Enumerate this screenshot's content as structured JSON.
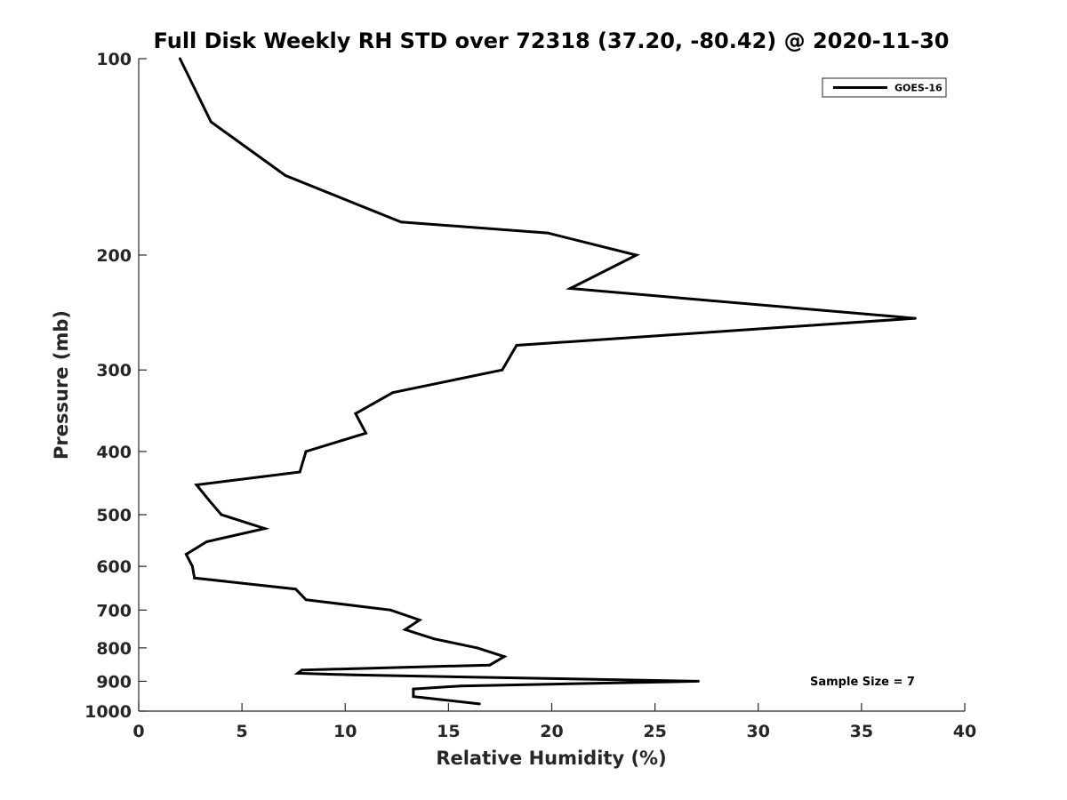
{
  "chart_data": {
    "type": "line",
    "title": "Full Disk Weekly RH STD over 72318 (37.20, -80.42) @ 2020-11-30",
    "xlabel": "Relative Humidity (%)",
    "ylabel": "Pressure (mb)",
    "xlim": [
      0,
      40
    ],
    "ylim": [
      100,
      1000
    ],
    "y_scale": "log",
    "y_inverted": true,
    "x_ticks": [
      "0",
      "5",
      "10",
      "15",
      "20",
      "25",
      "30",
      "35",
      "40"
    ],
    "y_ticks": [
      "100",
      "200",
      "300",
      "400",
      "500",
      "600",
      "700",
      "800",
      "900",
      "1000"
    ],
    "grid": false,
    "legend_position": "top-right",
    "series": [
      {
        "name": "GOES-16",
        "color": "#000000",
        "points": [
          {
            "x": 2.0,
            "y": 100
          },
          {
            "x": 3.5,
            "y": 125
          },
          {
            "x": 7.1,
            "y": 151
          },
          {
            "x": 12.7,
            "y": 178
          },
          {
            "x": 19.8,
            "y": 185
          },
          {
            "x": 24.1,
            "y": 200
          },
          {
            "x": 20.9,
            "y": 225
          },
          {
            "x": 37.6,
            "y": 250
          },
          {
            "x": 18.3,
            "y": 275
          },
          {
            "x": 17.6,
            "y": 300
          },
          {
            "x": 12.3,
            "y": 325
          },
          {
            "x": 10.5,
            "y": 350
          },
          {
            "x": 11.0,
            "y": 375
          },
          {
            "x": 8.1,
            "y": 400
          },
          {
            "x": 7.8,
            "y": 430
          },
          {
            "x": 2.8,
            "y": 450
          },
          {
            "x": 3.4,
            "y": 475
          },
          {
            "x": 4.0,
            "y": 500
          },
          {
            "x": 6.1,
            "y": 525
          },
          {
            "x": 3.3,
            "y": 550
          },
          {
            "x": 2.3,
            "y": 575
          },
          {
            "x": 2.6,
            "y": 600
          },
          {
            "x": 2.7,
            "y": 625
          },
          {
            "x": 7.6,
            "y": 650
          },
          {
            "x": 8.1,
            "y": 675
          },
          {
            "x": 12.2,
            "y": 700
          },
          {
            "x": 13.6,
            "y": 725
          },
          {
            "x": 12.9,
            "y": 750
          },
          {
            "x": 14.3,
            "y": 775
          },
          {
            "x": 16.4,
            "y": 800
          },
          {
            "x": 17.7,
            "y": 825
          },
          {
            "x": 17.0,
            "y": 850
          },
          {
            "x": 7.9,
            "y": 865
          },
          {
            "x": 7.7,
            "y": 875
          },
          {
            "x": 10.4,
            "y": 880
          },
          {
            "x": 27.1,
            "y": 900
          },
          {
            "x": 15.6,
            "y": 915
          },
          {
            "x": 13.3,
            "y": 925
          },
          {
            "x": 13.3,
            "y": 950
          },
          {
            "x": 16.5,
            "y": 975
          }
        ]
      }
    ],
    "annotations": [
      "Sample Size = 7"
    ]
  }
}
